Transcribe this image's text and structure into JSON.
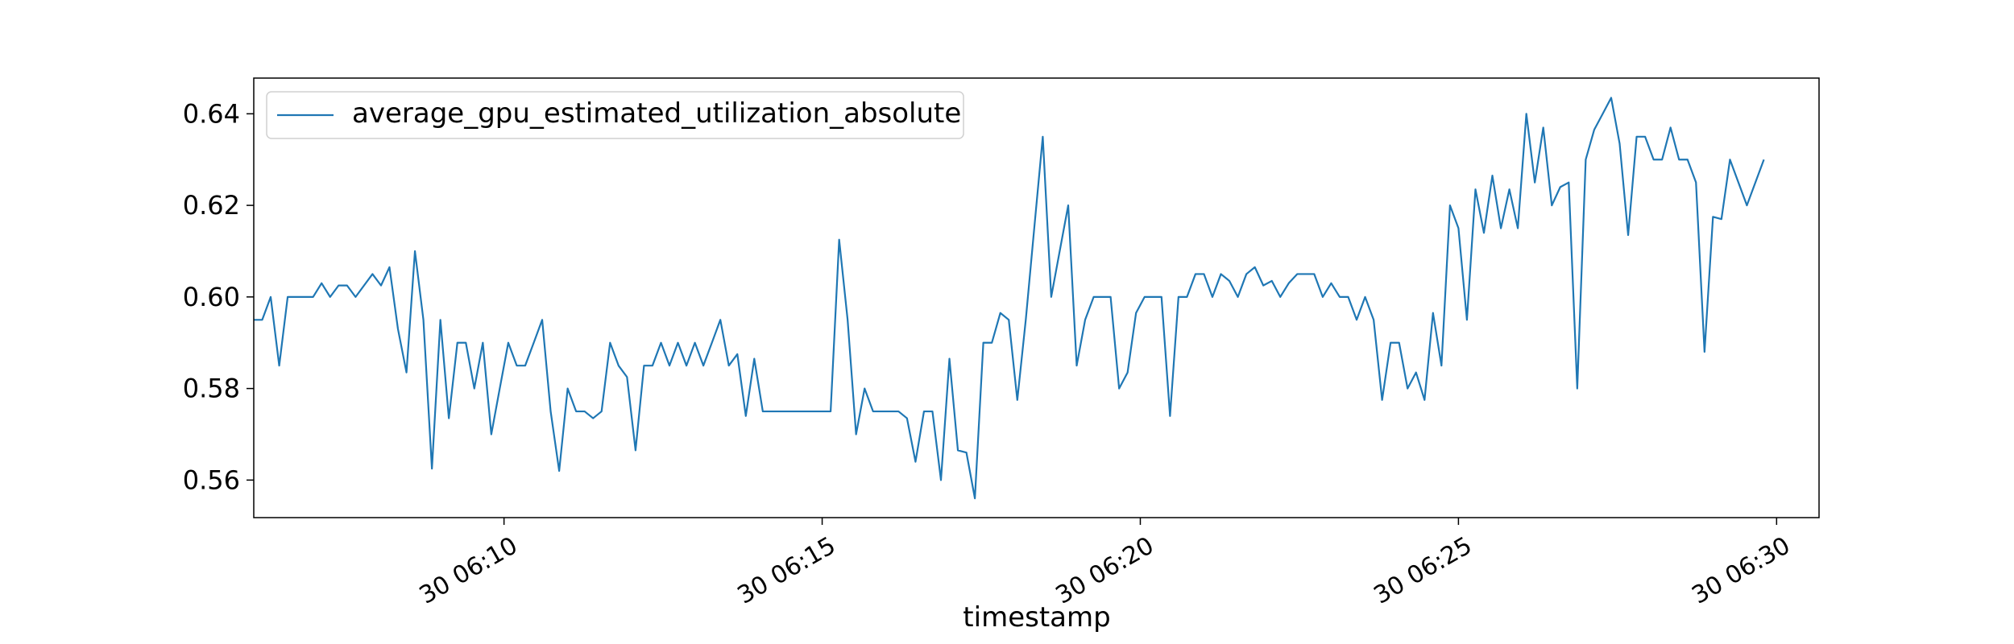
{
  "chart_data": {
    "type": "line",
    "xlabel": "timestamp",
    "ylabel": "",
    "ylim": [
      0.5518,
      0.6478
    ],
    "xlim_minutes": [
      6.067,
      30.667
    ],
    "yticks": [
      {
        "value": 0.56,
        "label": "0.56"
      },
      {
        "value": 0.58,
        "label": "0.58"
      },
      {
        "value": 0.6,
        "label": "0.60"
      },
      {
        "value": 0.62,
        "label": "0.62"
      },
      {
        "value": 0.64,
        "label": "0.64"
      }
    ],
    "xticks": [
      {
        "value": 10,
        "label": "30 06:10"
      },
      {
        "value": 15,
        "label": "30 06:15"
      },
      {
        "value": 20,
        "label": "30 06:20"
      },
      {
        "value": 25,
        "label": "30 06:25"
      },
      {
        "value": 30,
        "label": "30 06:30"
      }
    ],
    "grid": false,
    "legend": {
      "placement": "top-left"
    },
    "series": [
      {
        "name": "average_gpu_estimated_utilization_absolute",
        "color": "#1f77b4",
        "points": [
          [
            6.067,
            0.595
          ],
          [
            6.2,
            0.595
          ],
          [
            6.333,
            0.6
          ],
          [
            6.467,
            0.585
          ],
          [
            6.6,
            0.6
          ],
          [
            6.733,
            0.6
          ],
          [
            6.867,
            0.6
          ],
          [
            7.0,
            0.6
          ],
          [
            7.133,
            0.603
          ],
          [
            7.267,
            0.6
          ],
          [
            7.4,
            0.6025
          ],
          [
            7.533,
            0.6025
          ],
          [
            7.667,
            0.6
          ],
          [
            7.8,
            0.6025
          ],
          [
            7.933,
            0.605
          ],
          [
            8.067,
            0.6025
          ],
          [
            8.2,
            0.6065
          ],
          [
            8.333,
            0.593
          ],
          [
            8.467,
            0.5835
          ],
          [
            8.6,
            0.61
          ],
          [
            8.733,
            0.595
          ],
          [
            8.867,
            0.5625
          ],
          [
            9.0,
            0.595
          ],
          [
            9.133,
            0.5735
          ],
          [
            9.267,
            0.59
          ],
          [
            9.4,
            0.59
          ],
          [
            9.533,
            0.58
          ],
          [
            9.667,
            0.59
          ],
          [
            9.8,
            0.57
          ],
          [
            9.933,
            0.58
          ],
          [
            10.067,
            0.59
          ],
          [
            10.2,
            0.585
          ],
          [
            10.333,
            0.585
          ],
          [
            10.467,
            0.59
          ],
          [
            10.6,
            0.595
          ],
          [
            10.733,
            0.575
          ],
          [
            10.867,
            0.562
          ],
          [
            11.0,
            0.58
          ],
          [
            11.133,
            0.575
          ],
          [
            11.267,
            0.575
          ],
          [
            11.4,
            0.5735
          ],
          [
            11.533,
            0.575
          ],
          [
            11.667,
            0.59
          ],
          [
            11.8,
            0.585
          ],
          [
            11.933,
            0.5825
          ],
          [
            12.067,
            0.5665
          ],
          [
            12.2,
            0.585
          ],
          [
            12.333,
            0.585
          ],
          [
            12.467,
            0.59
          ],
          [
            12.6,
            0.585
          ],
          [
            12.733,
            0.59
          ],
          [
            12.867,
            0.585
          ],
          [
            13.0,
            0.59
          ],
          [
            13.133,
            0.585
          ],
          [
            13.267,
            0.59
          ],
          [
            13.4,
            0.595
          ],
          [
            13.533,
            0.585
          ],
          [
            13.667,
            0.5875
          ],
          [
            13.8,
            0.574
          ],
          [
            13.933,
            0.5865
          ],
          [
            14.067,
            0.575
          ],
          [
            14.2,
            0.575
          ],
          [
            14.333,
            0.575
          ],
          [
            14.467,
            0.575
          ],
          [
            14.6,
            0.575
          ],
          [
            14.733,
            0.575
          ],
          [
            14.867,
            0.575
          ],
          [
            15.0,
            0.575
          ],
          [
            15.133,
            0.575
          ],
          [
            15.267,
            0.6125
          ],
          [
            15.4,
            0.595
          ],
          [
            15.533,
            0.57
          ],
          [
            15.667,
            0.58
          ],
          [
            15.8,
            0.575
          ],
          [
            15.933,
            0.575
          ],
          [
            16.067,
            0.575
          ],
          [
            16.2,
            0.575
          ],
          [
            16.333,
            0.5735
          ],
          [
            16.467,
            0.564
          ],
          [
            16.6,
            0.575
          ],
          [
            16.733,
            0.575
          ],
          [
            16.867,
            0.56
          ],
          [
            17.0,
            0.5865
          ],
          [
            17.133,
            0.5665
          ],
          [
            17.267,
            0.566
          ],
          [
            17.4,
            0.556
          ],
          [
            17.533,
            0.59
          ],
          [
            17.667,
            0.59
          ],
          [
            17.8,
            0.5965
          ],
          [
            17.933,
            0.595
          ],
          [
            18.067,
            0.5775
          ],
          [
            18.2,
            0.595
          ],
          [
            18.333,
            0.615
          ],
          [
            18.467,
            0.635
          ],
          [
            18.6,
            0.6
          ],
          [
            18.733,
            0.61
          ],
          [
            18.867,
            0.62
          ],
          [
            19.0,
            0.585
          ],
          [
            19.133,
            0.595
          ],
          [
            19.267,
            0.6
          ],
          [
            19.4,
            0.6
          ],
          [
            19.533,
            0.6
          ],
          [
            19.667,
            0.58
          ],
          [
            19.8,
            0.5835
          ],
          [
            19.933,
            0.5965
          ],
          [
            20.067,
            0.6
          ],
          [
            20.2,
            0.6
          ],
          [
            20.333,
            0.6
          ],
          [
            20.467,
            0.574
          ],
          [
            20.6,
            0.6
          ],
          [
            20.733,
            0.6
          ],
          [
            20.867,
            0.605
          ],
          [
            21.0,
            0.605
          ],
          [
            21.133,
            0.6
          ],
          [
            21.267,
            0.605
          ],
          [
            21.4,
            0.6035
          ],
          [
            21.533,
            0.6
          ],
          [
            21.667,
            0.605
          ],
          [
            21.8,
            0.6065
          ],
          [
            21.933,
            0.6025
          ],
          [
            22.067,
            0.6035
          ],
          [
            22.2,
            0.6
          ],
          [
            22.333,
            0.603
          ],
          [
            22.467,
            0.605
          ],
          [
            22.6,
            0.605
          ],
          [
            22.733,
            0.605
          ],
          [
            22.867,
            0.6
          ],
          [
            23.0,
            0.603
          ],
          [
            23.133,
            0.6
          ],
          [
            23.267,
            0.6
          ],
          [
            23.4,
            0.595
          ],
          [
            23.533,
            0.6
          ],
          [
            23.667,
            0.595
          ],
          [
            23.8,
            0.5775
          ],
          [
            23.933,
            0.59
          ],
          [
            24.067,
            0.59
          ],
          [
            24.2,
            0.58
          ],
          [
            24.333,
            0.5835
          ],
          [
            24.467,
            0.5775
          ],
          [
            24.6,
            0.5965
          ],
          [
            24.733,
            0.585
          ],
          [
            24.867,
            0.62
          ],
          [
            25.0,
            0.615
          ],
          [
            25.133,
            0.595
          ],
          [
            25.267,
            0.6235
          ],
          [
            25.4,
            0.614
          ],
          [
            25.533,
            0.6265
          ],
          [
            25.667,
            0.615
          ],
          [
            25.8,
            0.6235
          ],
          [
            25.933,
            0.615
          ],
          [
            26.067,
            0.64
          ],
          [
            26.2,
            0.625
          ],
          [
            26.333,
            0.637
          ],
          [
            26.467,
            0.62
          ],
          [
            26.6,
            0.624
          ],
          [
            26.733,
            0.625
          ],
          [
            26.867,
            0.58
          ],
          [
            27.0,
            0.63
          ],
          [
            27.133,
            0.6365
          ],
          [
            27.267,
            0.64
          ],
          [
            27.4,
            0.6435
          ],
          [
            27.533,
            0.6335
          ],
          [
            27.667,
            0.6135
          ],
          [
            27.8,
            0.635
          ],
          [
            27.933,
            0.635
          ],
          [
            28.067,
            0.63
          ],
          [
            28.2,
            0.63
          ],
          [
            28.333,
            0.637
          ],
          [
            28.467,
            0.63
          ],
          [
            28.6,
            0.63
          ],
          [
            28.733,
            0.625
          ],
          [
            28.867,
            0.588
          ],
          [
            29.0,
            0.6175
          ],
          [
            29.133,
            0.617
          ],
          [
            29.267,
            0.63
          ],
          [
            29.533,
            0.62
          ],
          [
            29.8,
            0.63
          ]
        ]
      }
    ]
  }
}
